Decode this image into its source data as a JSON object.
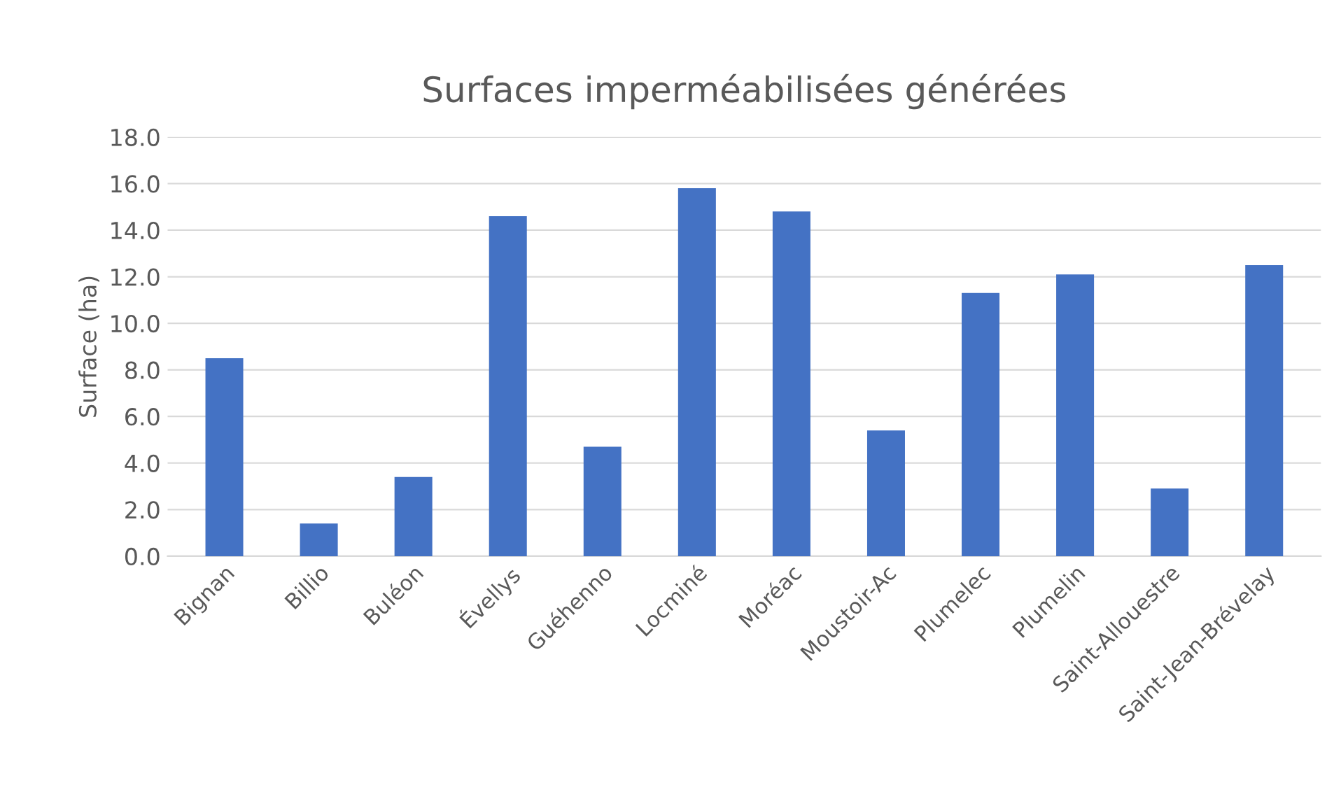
{
  "chart_data": {
    "type": "bar",
    "title": "Surfaces imperméabilisées générées",
    "ylabel": "Surface (ha)",
    "categories": [
      "Bignan",
      "Billio",
      "Buléon",
      "Évellys",
      "Guéhenno",
      "Locminé",
      "Moréac",
      "Moustoir-Ac",
      "Plumelec",
      "Plumelin",
      "Saint-Allouestre",
      "Saint-Jean-Brévelay"
    ],
    "values": [
      8.5,
      1.4,
      3.4,
      14.6,
      4.7,
      15.8,
      14.8,
      5.4,
      11.3,
      12.1,
      2.9,
      12.5
    ],
    "color": "#4472c4",
    "ylim": [
      0,
      18
    ],
    "yticks": [
      {
        "value": 0,
        "label": "0.0"
      },
      {
        "value": 2,
        "label": "2.0"
      },
      {
        "value": 4,
        "label": "4.0"
      },
      {
        "value": 6,
        "label": "6.0"
      },
      {
        "value": 8,
        "label": "8.0"
      },
      {
        "value": 10,
        "label": "10.0"
      },
      {
        "value": 12,
        "label": "12.0"
      },
      {
        "value": 14,
        "label": "14.0"
      },
      {
        "value": 16,
        "label": "16.0"
      },
      {
        "value": 18,
        "label": "18.0"
      }
    ],
    "grid": "y",
    "legend": false
  }
}
